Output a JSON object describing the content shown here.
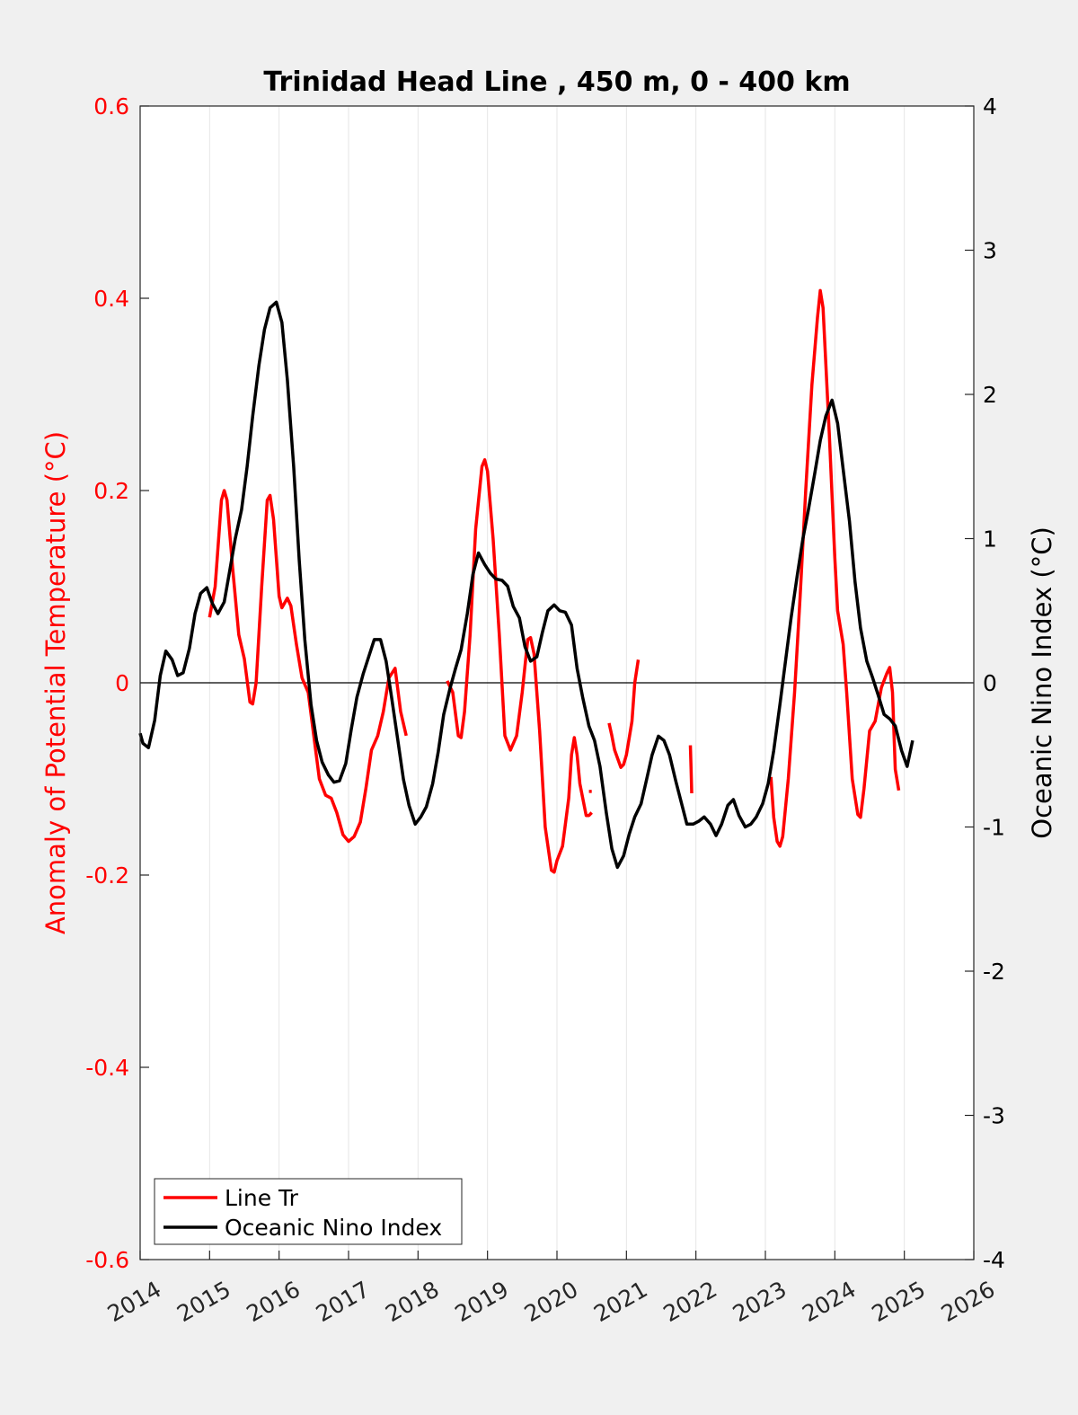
{
  "chart_data": {
    "type": "line",
    "title": "Trinidad Head Line , 450 m, 0 - 400 km",
    "ylabel": "Anomaly of Potential Temperature (°C)",
    "y2label": "Oceanic Nino Index (°C)",
    "xlim": [
      2014,
      2026
    ],
    "ylim": [
      -0.6,
      0.6
    ],
    "y2lim": [
      -4,
      4
    ],
    "x_ticks": [
      "2014",
      "2015",
      "2016",
      "2017",
      "2018",
      "2019",
      "2020",
      "2021",
      "2022",
      "2023",
      "2024",
      "2025",
      "2026"
    ],
    "y_ticks": [
      "0.6",
      "0.4",
      "0.2",
      "0",
      "-0.2",
      "-0.4",
      "-0.6"
    ],
    "y2_ticks": [
      "4",
      "3",
      "2",
      "1",
      "0",
      "-1",
      "-2",
      "-3",
      "-4"
    ],
    "grid": "x-major",
    "legend": "bottom-left",
    "colors": {
      "line_tr": "#ff0000",
      "oni": "#000000"
    },
    "series": [
      {
        "name": "Line Tr",
        "axis": "left",
        "segments": [
          [
            [
              2015.0,
              0.068
            ],
            [
              2015.08,
              0.1
            ],
            [
              2015.17,
              0.19
            ],
            [
              2015.21,
              0.2
            ],
            [
              2015.25,
              0.19
            ],
            [
              2015.33,
              0.12
            ],
            [
              2015.42,
              0.05
            ],
            [
              2015.5,
              0.025
            ],
            [
              2015.58,
              -0.02
            ],
            [
              2015.62,
              -0.022
            ],
            [
              2015.67,
              0.0
            ],
            [
              2015.75,
              0.1
            ],
            [
              2015.83,
              0.19
            ],
            [
              2015.87,
              0.195
            ],
            [
              2015.92,
              0.17
            ],
            [
              2016.0,
              0.09
            ],
            [
              2016.04,
              0.078
            ],
            [
              2016.12,
              0.088
            ],
            [
              2016.17,
              0.08
            ],
            [
              2016.25,
              0.04
            ],
            [
              2016.33,
              0.005
            ],
            [
              2016.42,
              -0.01
            ],
            [
              2016.5,
              -0.055
            ],
            [
              2016.58,
              -0.1
            ],
            [
              2016.67,
              -0.117
            ],
            [
              2016.75,
              -0.12
            ],
            [
              2016.83,
              -0.135
            ],
            [
              2016.92,
              -0.158
            ],
            [
              2017.0,
              -0.165
            ],
            [
              2017.08,
              -0.16
            ],
            [
              2017.17,
              -0.145
            ],
            [
              2017.25,
              -0.11
            ],
            [
              2017.33,
              -0.07
            ],
            [
              2017.42,
              -0.055
            ],
            [
              2017.5,
              -0.03
            ],
            [
              2017.58,
              0.005
            ],
            [
              2017.67,
              0.015
            ],
            [
              2017.75,
              -0.03
            ],
            [
              2017.83,
              -0.055
            ]
          ],
          [
            [
              2018.42,
              0.002
            ],
            [
              2018.5,
              -0.01
            ],
            [
              2018.58,
              -0.055
            ],
            [
              2018.62,
              -0.057
            ],
            [
              2018.67,
              -0.03
            ],
            [
              2018.75,
              0.05
            ],
            [
              2018.83,
              0.16
            ],
            [
              2018.92,
              0.225
            ],
            [
              2018.96,
              0.232
            ],
            [
              2019.0,
              0.22
            ],
            [
              2019.08,
              0.15
            ],
            [
              2019.17,
              0.05
            ],
            [
              2019.25,
              -0.055
            ],
            [
              2019.33,
              -0.07
            ],
            [
              2019.42,
              -0.055
            ],
            [
              2019.5,
              -0.01
            ],
            [
              2019.58,
              0.045
            ],
            [
              2019.62,
              0.047
            ],
            [
              2019.67,
              0.03
            ],
            [
              2019.75,
              -0.05
            ],
            [
              2019.83,
              -0.15
            ],
            [
              2019.92,
              -0.195
            ],
            [
              2019.96,
              -0.197
            ],
            [
              2020.0,
              -0.185
            ],
            [
              2020.08,
              -0.17
            ],
            [
              2020.17,
              -0.12
            ],
            [
              2020.21,
              -0.075
            ],
            [
              2020.25,
              -0.057
            ],
            [
              2020.29,
              -0.075
            ],
            [
              2020.33,
              -0.105
            ],
            [
              2020.42,
              -0.138
            ],
            [
              2020.46,
              -0.138
            ],
            [
              2020.5,
              -0.135
            ]
          ],
          [
            [
              2020.46,
              -0.113
            ],
            [
              2020.5,
              -0.113
            ]
          ],
          [
            [
              2020.75,
              -0.042
            ],
            [
              2020.79,
              -0.055
            ],
            [
              2020.83,
              -0.07
            ],
            [
              2020.92,
              -0.088
            ],
            [
              2020.96,
              -0.085
            ],
            [
              2021.0,
              -0.075
            ],
            [
              2021.08,
              -0.04
            ],
            [
              2021.12,
              0.0
            ],
            [
              2021.17,
              0.024
            ]
          ],
          [
            [
              2021.92,
              -0.065
            ],
            [
              2021.93,
              -0.09
            ],
            [
              2021.94,
              -0.115
            ]
          ],
          [
            [
              2023.08,
              -0.098
            ],
            [
              2023.12,
              -0.14
            ],
            [
              2023.17,
              -0.165
            ],
            [
              2023.21,
              -0.17
            ],
            [
              2023.25,
              -0.16
            ],
            [
              2023.33,
              -0.1
            ],
            [
              2023.42,
              -0.01
            ],
            [
              2023.5,
              0.09
            ],
            [
              2023.58,
              0.2
            ],
            [
              2023.67,
              0.31
            ],
            [
              2023.75,
              0.38
            ],
            [
              2023.79,
              0.408
            ],
            [
              2023.83,
              0.39
            ],
            [
              2023.92,
              0.26
            ],
            [
              2024.0,
              0.13
            ],
            [
              2024.04,
              0.075
            ],
            [
              2024.12,
              0.04
            ],
            [
              2024.17,
              -0.01
            ],
            [
              2024.25,
              -0.1
            ],
            [
              2024.33,
              -0.137
            ],
            [
              2024.37,
              -0.14
            ],
            [
              2024.42,
              -0.11
            ],
            [
              2024.5,
              -0.05
            ],
            [
              2024.58,
              -0.04
            ],
            [
              2024.67,
              -0.005
            ],
            [
              2024.75,
              0.01
            ],
            [
              2024.79,
              0.016
            ],
            [
              2024.83,
              -0.01
            ],
            [
              2024.87,
              -0.09
            ],
            [
              2024.92,
              -0.112
            ]
          ]
        ]
      },
      {
        "name": "Oceanic Nino Index",
        "axis": "right",
        "segments": [
          [
            [
              2014.0,
              -0.35
            ],
            [
              2014.04,
              -0.42
            ],
            [
              2014.12,
              -0.45
            ],
            [
              2014.21,
              -0.26
            ],
            [
              2014.29,
              0.05
            ],
            [
              2014.37,
              0.22
            ],
            [
              2014.46,
              0.16
            ],
            [
              2014.54,
              0.05
            ],
            [
              2014.62,
              0.07
            ],
            [
              2014.71,
              0.24
            ],
            [
              2014.79,
              0.48
            ],
            [
              2014.87,
              0.62
            ],
            [
              2014.96,
              0.66
            ],
            [
              2015.04,
              0.55
            ],
            [
              2015.12,
              0.48
            ],
            [
              2015.21,
              0.56
            ],
            [
              2015.29,
              0.78
            ],
            [
              2015.37,
              1.0
            ],
            [
              2015.46,
              1.2
            ],
            [
              2015.54,
              1.5
            ],
            [
              2015.62,
              1.85
            ],
            [
              2015.71,
              2.2
            ],
            [
              2015.79,
              2.45
            ],
            [
              2015.87,
              2.6
            ],
            [
              2015.96,
              2.64
            ],
            [
              2016.04,
              2.5
            ],
            [
              2016.12,
              2.1
            ],
            [
              2016.21,
              1.5
            ],
            [
              2016.29,
              0.85
            ],
            [
              2016.37,
              0.3
            ],
            [
              2016.46,
              -0.15
            ],
            [
              2016.54,
              -0.4
            ],
            [
              2016.62,
              -0.55
            ],
            [
              2016.71,
              -0.64
            ],
            [
              2016.79,
              -0.69
            ],
            [
              2016.87,
              -0.68
            ],
            [
              2016.96,
              -0.56
            ],
            [
              2017.04,
              -0.32
            ],
            [
              2017.12,
              -0.1
            ],
            [
              2017.21,
              0.06
            ],
            [
              2017.29,
              0.18
            ],
            [
              2017.37,
              0.3
            ],
            [
              2017.46,
              0.3
            ],
            [
              2017.54,
              0.15
            ],
            [
              2017.62,
              -0.1
            ],
            [
              2017.71,
              -0.4
            ],
            [
              2017.79,
              -0.67
            ],
            [
              2017.87,
              -0.85
            ],
            [
              2017.96,
              -0.98
            ],
            [
              2018.04,
              -0.93
            ],
            [
              2018.12,
              -0.86
            ],
            [
              2018.21,
              -0.7
            ],
            [
              2018.29,
              -0.48
            ],
            [
              2018.37,
              -0.22
            ],
            [
              2018.46,
              -0.04
            ],
            [
              2018.54,
              0.1
            ],
            [
              2018.62,
              0.23
            ],
            [
              2018.71,
              0.48
            ],
            [
              2018.79,
              0.75
            ],
            [
              2018.87,
              0.9
            ],
            [
              2018.96,
              0.82
            ],
            [
              2019.04,
              0.76
            ],
            [
              2019.12,
              0.72
            ],
            [
              2019.21,
              0.71
            ],
            [
              2019.29,
              0.67
            ],
            [
              2019.37,
              0.53
            ],
            [
              2019.46,
              0.45
            ],
            [
              2019.54,
              0.25
            ],
            [
              2019.62,
              0.15
            ],
            [
              2019.71,
              0.18
            ],
            [
              2019.79,
              0.35
            ],
            [
              2019.87,
              0.5
            ],
            [
              2019.96,
              0.54
            ],
            [
              2020.04,
              0.5
            ],
            [
              2020.12,
              0.49
            ],
            [
              2020.21,
              0.4
            ],
            [
              2020.29,
              0.1
            ],
            [
              2020.37,
              -0.1
            ],
            [
              2020.46,
              -0.3
            ],
            [
              2020.54,
              -0.4
            ],
            [
              2020.62,
              -0.58
            ],
            [
              2020.71,
              -0.9
            ],
            [
              2020.79,
              -1.15
            ],
            [
              2020.87,
              -1.28
            ],
            [
              2020.96,
              -1.2
            ],
            [
              2021.04,
              -1.05
            ],
            [
              2021.12,
              -0.93
            ],
            [
              2021.21,
              -0.84
            ],
            [
              2021.29,
              -0.67
            ],
            [
              2021.37,
              -0.5
            ],
            [
              2021.46,
              -0.37
            ],
            [
              2021.54,
              -0.4
            ],
            [
              2021.62,
              -0.5
            ],
            [
              2021.71,
              -0.68
            ],
            [
              2021.79,
              -0.83
            ],
            [
              2021.87,
              -0.98
            ],
            [
              2021.96,
              -0.98
            ],
            [
              2022.04,
              -0.96
            ],
            [
              2022.12,
              -0.93
            ],
            [
              2022.21,
              -0.98
            ],
            [
              2022.29,
              -1.06
            ],
            [
              2022.37,
              -0.98
            ],
            [
              2022.46,
              -0.85
            ],
            [
              2022.54,
              -0.81
            ],
            [
              2022.62,
              -0.92
            ],
            [
              2022.71,
              -1.0
            ],
            [
              2022.79,
              -0.98
            ],
            [
              2022.87,
              -0.93
            ],
            [
              2022.96,
              -0.84
            ],
            [
              2023.04,
              -0.7
            ],
            [
              2023.12,
              -0.47
            ],
            [
              2023.21,
              -0.15
            ],
            [
              2023.29,
              0.15
            ],
            [
              2023.37,
              0.45
            ],
            [
              2023.46,
              0.75
            ],
            [
              2023.54,
              1.0
            ],
            [
              2023.62,
              1.2
            ],
            [
              2023.71,
              1.45
            ],
            [
              2023.79,
              1.68
            ],
            [
              2023.87,
              1.85
            ],
            [
              2023.96,
              1.96
            ],
            [
              2024.04,
              1.8
            ],
            [
              2024.12,
              1.48
            ],
            [
              2024.21,
              1.12
            ],
            [
              2024.29,
              0.7
            ],
            [
              2024.37,
              0.38
            ],
            [
              2024.46,
              0.15
            ],
            [
              2024.54,
              0.04
            ],
            [
              2024.62,
              -0.08
            ],
            [
              2024.71,
              -0.22
            ],
            [
              2024.79,
              -0.25
            ],
            [
              2024.87,
              -0.3
            ],
            [
              2024.96,
              -0.47
            ],
            [
              2025.04,
              -0.58
            ],
            [
              2025.12,
              -0.4
            ]
          ]
        ]
      }
    ]
  }
}
